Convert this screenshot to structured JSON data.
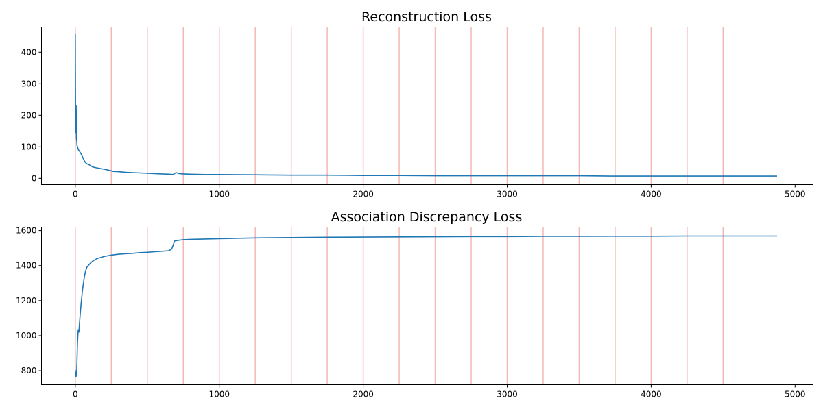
{
  "colors": {
    "series": "#1f77b4",
    "epoch_marker": "#f4a09a",
    "background": "#ffffff"
  },
  "chart_data": [
    {
      "type": "line",
      "title": "Reconstruction Loss",
      "xlabel": "",
      "ylabel": "",
      "xlim": [
        -235,
        5125
      ],
      "ylim": [
        -20,
        480
      ],
      "xticks": [
        0,
        1000,
        2000,
        3000,
        4000,
        5000
      ],
      "yticks": [
        0,
        100,
        200,
        300,
        400
      ],
      "grid": false,
      "vlines": [
        0,
        250,
        500,
        750,
        1000,
        1250,
        1500,
        1750,
        2000,
        2250,
        2500,
        2750,
        3000,
        3250,
        3500,
        3750,
        4000,
        4250,
        4500
      ],
      "series": [
        {
          "x": [
            0,
            2,
            4,
            6,
            8,
            10,
            12,
            15,
            20,
            30,
            40,
            50,
            60,
            70,
            80,
            100,
            120,
            150,
            200,
            250,
            260,
            300,
            350,
            400,
            450,
            500,
            550,
            600,
            650,
            680,
            700,
            720,
            750,
            800,
            900,
            1000,
            1250,
            1500,
            1750,
            2000,
            2250,
            2500,
            2750,
            3000,
            3250,
            3500,
            3750,
            4000,
            4250,
            4500,
            4750,
            4875
          ],
          "y": [
            460,
            200,
            145,
            230,
            125,
            120,
            105,
            100,
            92,
            85,
            78,
            68,
            58,
            50,
            46,
            42,
            36,
            33,
            29,
            24,
            22,
            21,
            19,
            18,
            17,
            16,
            15,
            14,
            13,
            12,
            18,
            15,
            14,
            13,
            12,
            12,
            11,
            10,
            10,
            9,
            9,
            8,
            8,
            8,
            8,
            8,
            7,
            7,
            7,
            7,
            7,
            7
          ]
        }
      ]
    },
    {
      "type": "line",
      "title": "Association Discrepancy Loss",
      "xlabel": "",
      "ylabel": "",
      "xlim": [
        -235,
        5125
      ],
      "ylim": [
        720,
        1620
      ],
      "xticks": [
        0,
        1000,
        2000,
        3000,
        4000,
        5000
      ],
      "yticks": [
        800,
        1000,
        1200,
        1400,
        1600
      ],
      "grid": false,
      "vlines": [
        0,
        250,
        500,
        750,
        1000,
        1250,
        1500,
        1750,
        2000,
        2250,
        2500,
        2750,
        3000,
        3250,
        3500,
        3750,
        4000,
        4250,
        4500
      ],
      "series": [
        {
          "x": [
            0,
            2,
            5,
            10,
            15,
            20,
            25,
            30,
            40,
            50,
            60,
            70,
            80,
            100,
            120,
            150,
            200,
            250,
            300,
            350,
            400,
            450,
            500,
            550,
            600,
            650,
            670,
            690,
            720,
            750,
            800,
            1000,
            1250,
            1500,
            1750,
            2000,
            2250,
            2500,
            2750,
            3000,
            3250,
            3500,
            3750,
            4000,
            4250,
            4500,
            4750,
            4875
          ],
          "y": [
            805,
            770,
            765,
            800,
            960,
            1030,
            1020,
            1080,
            1180,
            1260,
            1320,
            1365,
            1390,
            1410,
            1425,
            1440,
            1452,
            1460,
            1465,
            1468,
            1470,
            1474,
            1476,
            1479,
            1482,
            1485,
            1495,
            1540,
            1545,
            1548,
            1550,
            1554,
            1558,
            1560,
            1562,
            1563,
            1564,
            1565,
            1566,
            1566,
            1567,
            1567,
            1568,
            1568,
            1569,
            1569,
            1569,
            1569
          ]
        }
      ]
    }
  ]
}
